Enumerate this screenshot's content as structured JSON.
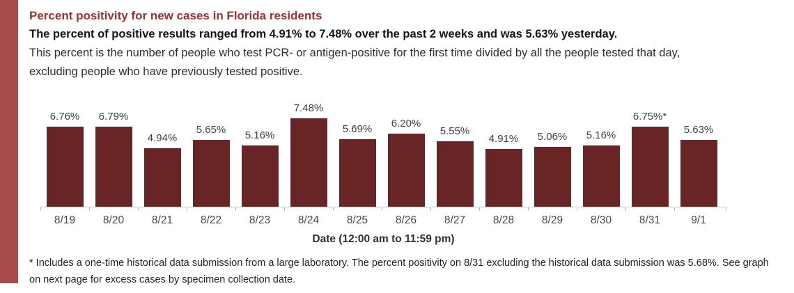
{
  "page": {
    "accent_stripe_color": "#a84a4a",
    "background_color": "#ffffff"
  },
  "header": {
    "title": "Percent positivity for new cases in Florida residents",
    "title_color": "#9e3132",
    "subtitle": "The percent of positive results ranged from 4.91% to 7.48% over the past 2 weeks and was 5.63% yesterday.",
    "description": "This percent is the number of people who test PCR- or antigen-positive for the first time divided by all the people tested that day, excluding people who have previously tested positive."
  },
  "chart_data": {
    "type": "bar",
    "title": "Percent positivity for new cases in Florida residents",
    "categories": [
      "8/19",
      "8/20",
      "8/21",
      "8/22",
      "8/23",
      "8/24",
      "8/25",
      "8/26",
      "8/27",
      "8/28",
      "8/29",
      "8/30",
      "8/31",
      "9/1"
    ],
    "values": [
      6.76,
      6.79,
      4.94,
      5.65,
      5.16,
      7.48,
      5.69,
      6.2,
      5.55,
      4.91,
      5.06,
      5.16,
      6.75,
      5.63
    ],
    "data_labels": [
      "6.76%",
      "6.79%",
      "4.94%",
      "5.65%",
      "5.16%",
      "7.48%",
      "5.69%",
      "6.20%",
      "5.55%",
      "4.91%",
      "5.06%",
      "5.16%",
      "6.75%*",
      "5.63%"
    ],
    "xlabel": "Date (12:00 am to 11:59 pm)",
    "ylabel": "",
    "ylim": [
      0,
      7.48
    ],
    "bar_color": "#692425",
    "axis_line_color": "#c9c9c9",
    "grid": false,
    "legend": false
  },
  "footnote": {
    "text": "* Includes a one-time historical data submission from a large laboratory. The percent positivity on 8/31 excluding the historical data submission was 5.68%. See graph on next page for excess cases by specimen collection date."
  }
}
